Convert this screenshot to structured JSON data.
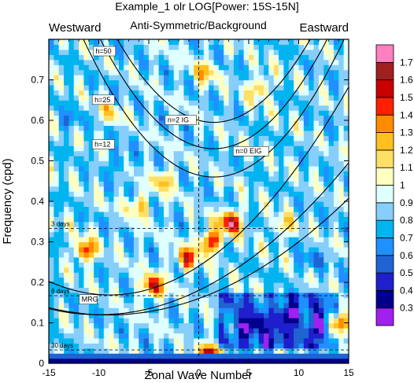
{
  "chart_data": {
    "type": "heatmap",
    "title": "Example_1 olr LOG[Power: 15S-15N]",
    "subtitle_left": "Westward",
    "subtitle_center": "Anti-Symmetric/Background",
    "subtitle_right": "Eastward",
    "xlabel": "Zonal Wave Number",
    "ylabel": "Frequency (cpd)",
    "xlim": [
      -15,
      15
    ],
    "ylim": [
      0,
      0.8
    ],
    "xticks": [
      -15,
      -10,
      -5,
      0,
      5,
      10,
      15
    ],
    "yticks": [
      0,
      0.1,
      0.2,
      0.3,
      0.4,
      0.5,
      0.6,
      0.7
    ],
    "ytick_labels": [
      "0",
      "0.1",
      "0.2",
      "0.3",
      "0.4",
      "0.5",
      "0.6",
      "0.7"
    ],
    "colorbar": {
      "levels": [
        "0.3",
        "0.4",
        "0.5",
        "0.6",
        "0.7",
        "0.8",
        "0.9",
        "1",
        "1.1",
        "1.2",
        "1.3",
        "1.4",
        "1.5",
        "1.6",
        "1.7"
      ],
      "colors": [
        "#a020f0",
        "#00008b",
        "#1f1fcd",
        "#1e64d2",
        "#1e90ff",
        "#00b4f0",
        "#87cefa",
        "#e0ffff",
        "#ffffc0",
        "#ffe066",
        "#ffc020",
        "#ff8c00",
        "#ff2000",
        "#c80000",
        "#a02020",
        "#ff80c0"
      ]
    },
    "reference_lines": [
      {
        "label": "3 days",
        "frequency": 0.333
      },
      {
        "label": "6 days",
        "frequency": 0.167
      },
      {
        "label": "30 days",
        "frequency": 0.033
      }
    ],
    "dispersion_curves": [
      {
        "label": "h=50",
        "type": "IG"
      },
      {
        "label": "h=25",
        "type": "IG"
      },
      {
        "label": "h=12",
        "type": "IG"
      },
      {
        "label": "n=2 IG",
        "type": "IG"
      },
      {
        "label": "n=0 EIG",
        "type": "EIG"
      },
      {
        "label": "MRG",
        "type": "MRG"
      }
    ],
    "peaks": [
      {
        "k": -11.3,
        "f": 0.28,
        "value": 1.5
      },
      {
        "k": -4.6,
        "f": 0.19,
        "value": 1.6
      },
      {
        "k": -1.2,
        "f": 0.26,
        "value": 1.5
      },
      {
        "k": 1.2,
        "f": 0.3,
        "value": 1.6
      },
      {
        "k": 3.2,
        "f": 0.35,
        "value": 1.7
      },
      {
        "k": 1.2,
        "f": 0.02,
        "value": 1.7
      },
      {
        "k": 14.0,
        "f": 0.1,
        "value": 1.7
      },
      {
        "k": -3.5,
        "f": 0.45,
        "value": 1.3
      },
      {
        "k": 0.5,
        "f": 0.72,
        "value": 1.3
      },
      {
        "k": 6.0,
        "f": 0.68,
        "value": 1.3
      },
      {
        "k": -9.0,
        "f": 0.62,
        "value": 1.2
      },
      {
        "k": -6.0,
        "f": 0.39,
        "value": 1.3
      },
      {
        "k": 8.5,
        "f": 0.34,
        "value": 1.2
      }
    ],
    "lows": [
      {
        "k": 5.0,
        "f": 0.09,
        "value": 0.5
      },
      {
        "k": 9.0,
        "f": 0.12,
        "value": 0.5
      },
      {
        "k": 12.0,
        "f": 0.09,
        "value": 0.5
      },
      {
        "k": -13.0,
        "f": 0.6,
        "value": 0.7
      },
      {
        "k": -8.0,
        "f": 0.5,
        "value": 0.7
      },
      {
        "k": 11.0,
        "f": 0.25,
        "value": 0.7
      },
      {
        "k": 7.0,
        "f": 0.05,
        "value": 0.6
      }
    ]
  }
}
